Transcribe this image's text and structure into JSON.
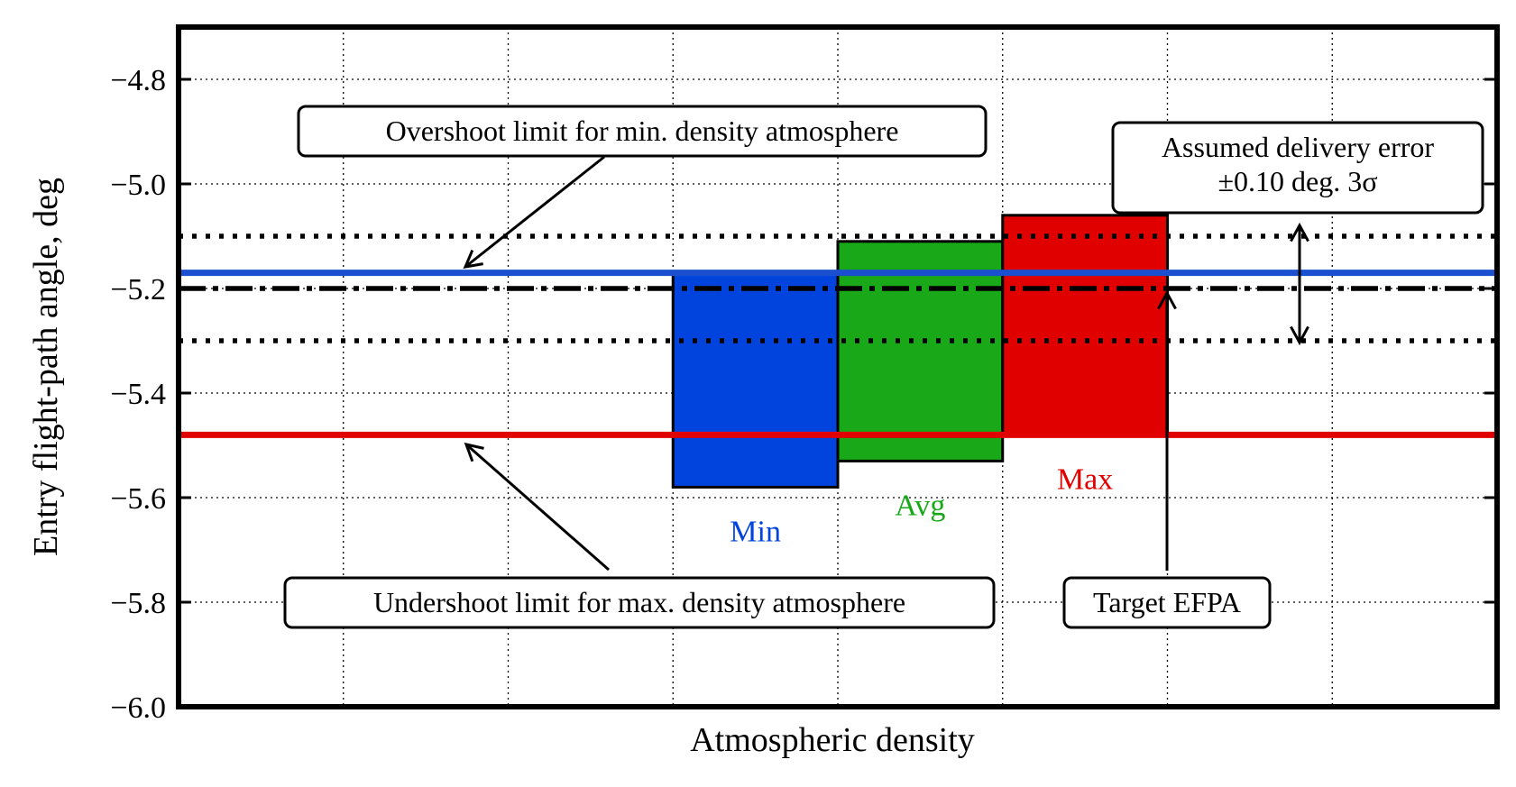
{
  "chart_data": {
    "type": "bar",
    "title": "",
    "xlabel": "Atmospheric density",
    "ylabel": "Entry flight-path angle, deg",
    "ylim": [
      -6.0,
      -4.7
    ],
    "yticks": [
      -4.8,
      -5.0,
      -5.2,
      -5.4,
      -5.6,
      -5.8,
      -6.0
    ],
    "ytick_labels": [
      "−4.8",
      "−5.0",
      "−5.2",
      "−5.4",
      "−5.6",
      "−5.8",
      "−6.0"
    ],
    "grid": true,
    "categories": [
      "Min",
      "Avg",
      "Max"
    ],
    "bars": [
      {
        "label": "Min",
        "color": "#0044dd",
        "top": -5.17,
        "bottom": -5.58
      },
      {
        "label": "Avg",
        "color": "#18a818",
        "top": -5.11,
        "bottom": -5.53
      },
      {
        "label": "Max",
        "color": "#e00000",
        "top": -5.06,
        "bottom": -5.48
      }
    ],
    "reference_lines": [
      {
        "name": "Overshoot limit for min. density atmosphere",
        "value": -5.17,
        "color": "#1a4fd0",
        "style": "solid"
      },
      {
        "name": "Undershoot limit for max. density atmosphere",
        "value": -5.48,
        "color": "#e00000",
        "style": "solid"
      },
      {
        "name": "Target EFPA",
        "value": -5.2,
        "color": "#000000",
        "style": "dashdot"
      },
      {
        "name": "upper delivery error bound",
        "value": -5.1,
        "color": "#000000",
        "style": "dotted"
      },
      {
        "name": "lower delivery error bound",
        "value": -5.3,
        "color": "#000000",
        "style": "dotted"
      }
    ],
    "annotations": [
      {
        "text": "Overshoot limit for min. density atmosphere"
      },
      {
        "text": "Undershoot limit for max. density atmosphere"
      },
      {
        "text": "Target EFPA"
      },
      {
        "lines": [
          "Assumed delivery error",
          "±0.10 deg. 3σ"
        ]
      }
    ]
  }
}
